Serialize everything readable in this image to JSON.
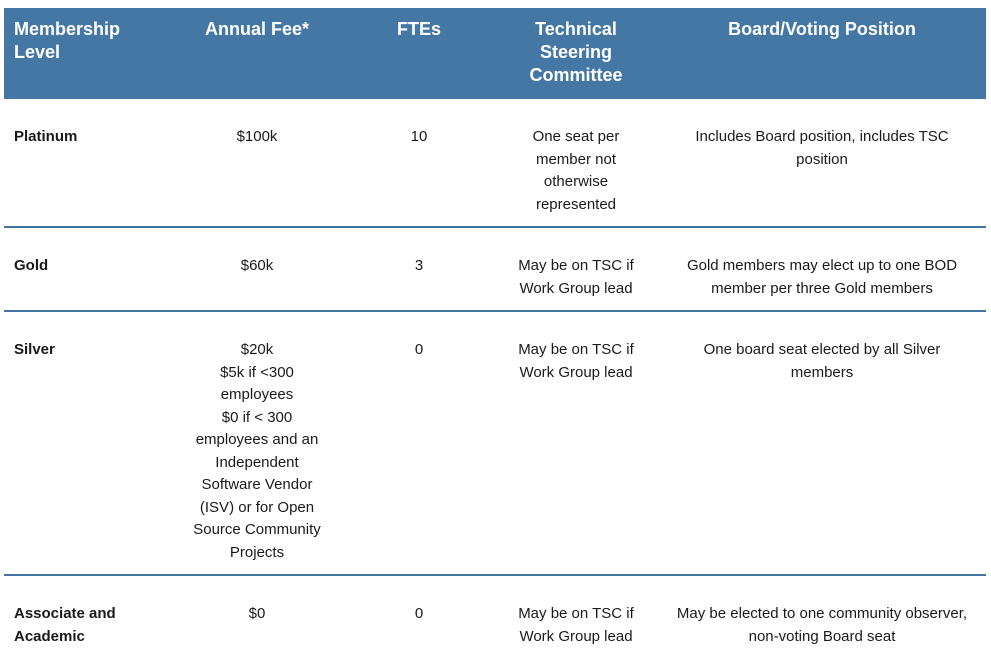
{
  "colors": {
    "header_background": "#4577a5",
    "header_text": "#ffffff",
    "row_divider": "#44739e",
    "body_text": "#1a1a1a"
  },
  "table": {
    "columns": [
      "Membership Level",
      "Annual Fee*",
      "FTEs",
      "Technical Steering Committee",
      "Board/Voting Position"
    ],
    "rows": [
      {
        "level": "Platinum",
        "fee": "$100k",
        "ftes": "10",
        "tsc": "One seat per member not otherwise represented",
        "board": "Includes Board position, includes TSC position"
      },
      {
        "level": "Gold",
        "fee": "$60k",
        "ftes": "3",
        "tsc": "May be on TSC if Work Group lead",
        "board": "Gold members may elect up to one BOD member per three Gold members"
      },
      {
        "level": "Silver",
        "fee": "$20k\n$5k if <300 employees\n$0 if < 300 employees and an Independent Software Vendor (ISV) or for Open Source Community Projects",
        "ftes": "0",
        "tsc": "May be on TSC if Work Group lead",
        "board": "One board seat elected by all Silver members"
      },
      {
        "level": "Associate and Academic",
        "fee": "$0",
        "ftes": "0",
        "tsc": "May be on TSC if Work Group lead",
        "board": "May be elected to one community observer, non-voting Board seat"
      }
    ]
  }
}
